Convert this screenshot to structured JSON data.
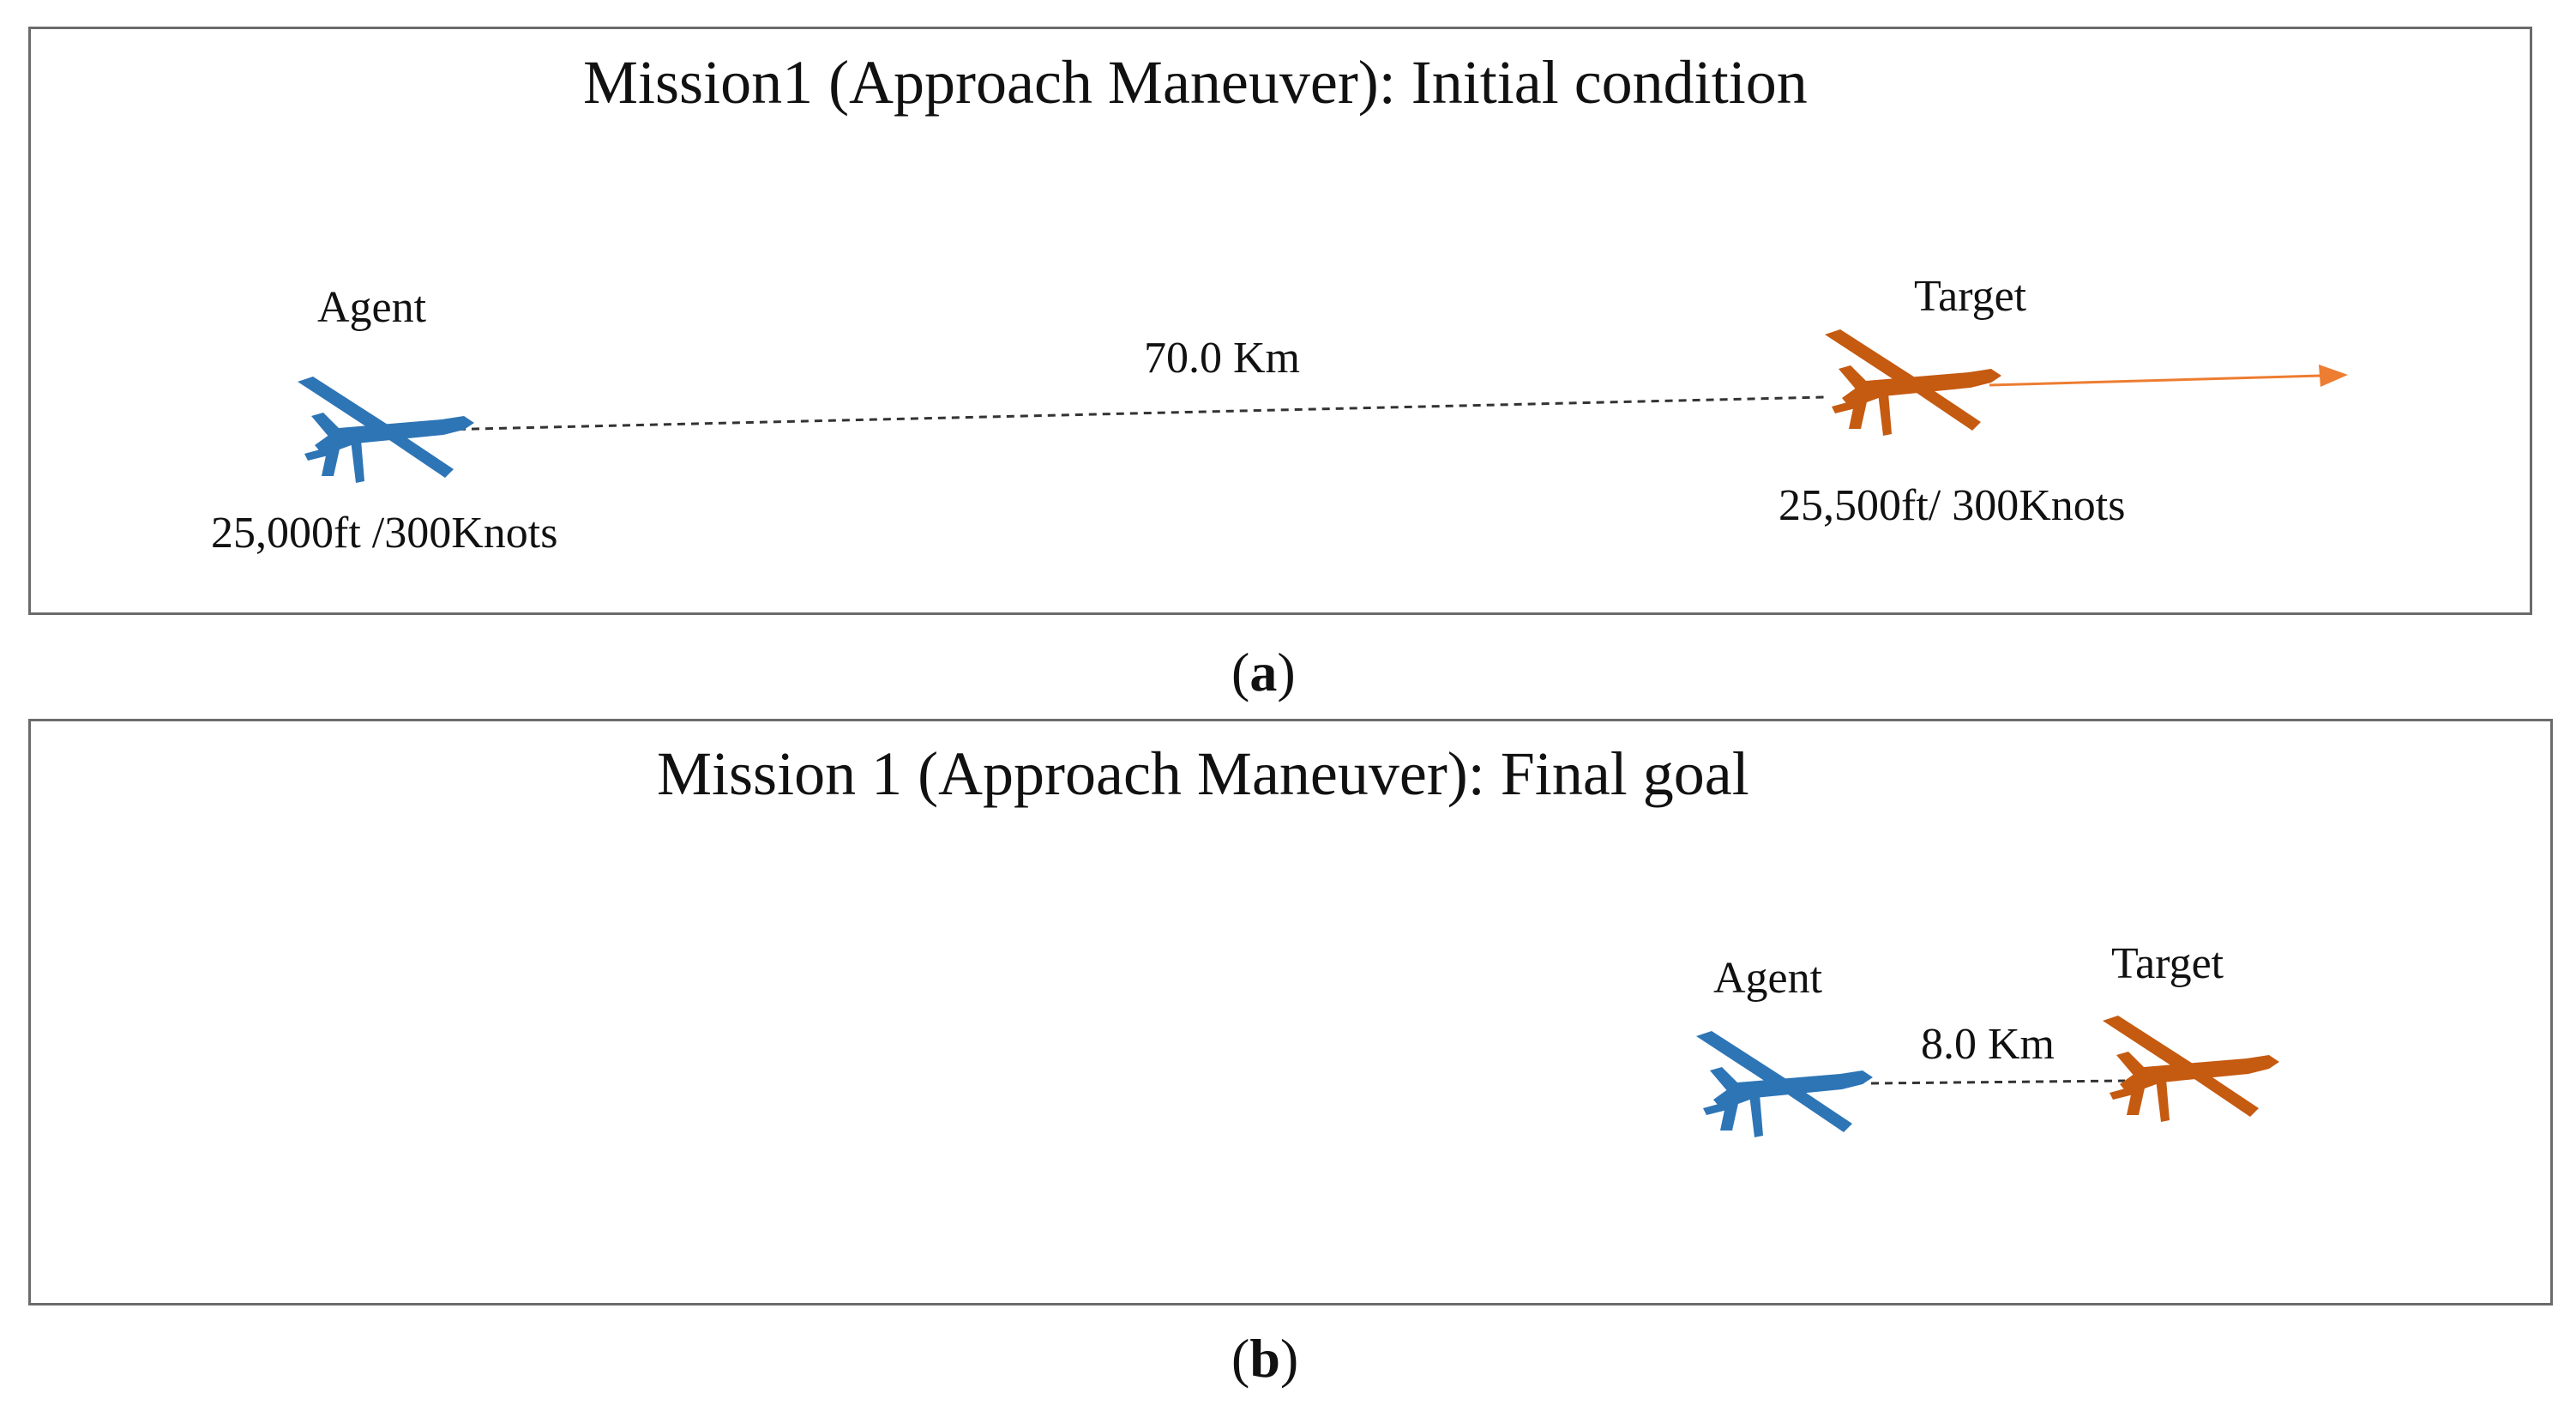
{
  "figure": {
    "panel_a": {
      "title": "Mission1 (Approach Maneuver): Initial condition",
      "agent_label": "Agent",
      "agent_state": "25,000ft /300Knots",
      "target_label": "Target",
      "target_state": "25,500ft/ 300Knots",
      "distance": "70.0 Km",
      "caption_letter": "a"
    },
    "panel_b": {
      "title": "Mission 1 (Approach Maneuver): Final goal",
      "agent_label": "Agent",
      "target_label": "Target",
      "distance": "8.0 Km",
      "caption_letter": "b"
    },
    "colors": {
      "agent": "#2e75b6",
      "target": "#c55a11",
      "heading_arrow": "#ed7d31",
      "frame": "#6b6b6b"
    },
    "icons": {
      "agent": "drone-icon",
      "target": "drone-icon"
    }
  }
}
